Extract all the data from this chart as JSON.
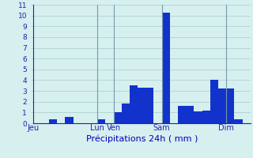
{
  "title": "",
  "xlabel": "Précipitations 24h ( mm )",
  "xlabel_color": "#0000bb",
  "bar_color": "#1133cc",
  "background_color": "#d6efef",
  "grid_color": "#aacccc",
  "axis_label_color": "#2222aa",
  "tick_color": "#2222aa",
  "vline_color": "#7799aa",
  "ylim": [
    0,
    11
  ],
  "yticks": [
    0,
    1,
    2,
    3,
    4,
    5,
    6,
    7,
    8,
    9,
    10,
    11
  ],
  "day_labels": [
    "Jeu",
    "Lun",
    "Ven",
    "Sam",
    "Dim"
  ],
  "day_positions": [
    0,
    8,
    10,
    16,
    24
  ],
  "num_bars": 27,
  "bar_values": [
    0,
    0,
    0.4,
    0,
    0.6,
    0,
    0,
    0,
    0.35,
    0,
    1.0,
    1.8,
    3.5,
    3.3,
    3.3,
    0,
    10.3,
    0,
    1.6,
    1.6,
    1.1,
    1.2,
    4.0,
    3.2,
    3.2,
    0.4,
    0
  ],
  "vline_positions": [
    8,
    10,
    16,
    24
  ],
  "xlabel_fontsize": 8,
  "ytick_fontsize": 6.5,
  "xtick_fontsize": 7
}
